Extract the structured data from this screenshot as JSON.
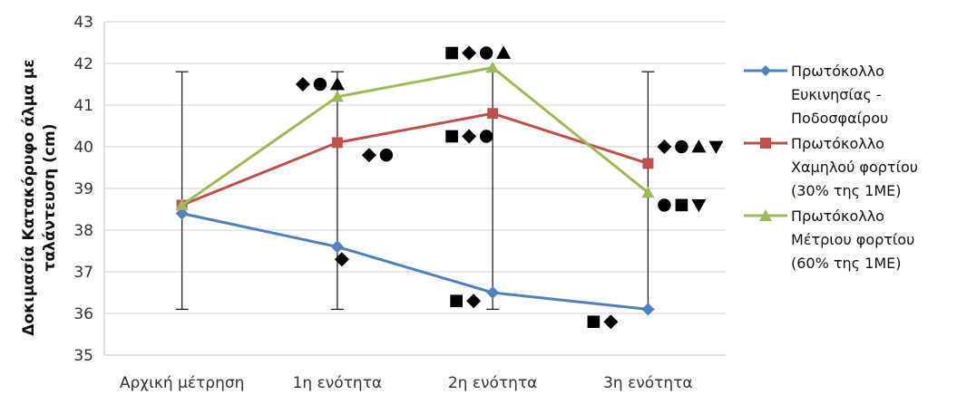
{
  "chart_data": {
    "type": "line",
    "title": "",
    "xlabel": "",
    "ylabel_lines": [
      "Δοκιμασία Κατακόρυφο άλμα με",
      "ταλάντευση (cm)"
    ],
    "categories": [
      "Αρχική μέτρηση",
      "1η ενότητα",
      "2η ενότητα",
      "3η ενότητα"
    ],
    "ylim": [
      35,
      43
    ],
    "yticks": [
      35,
      36,
      37,
      38,
      39,
      40,
      41,
      42,
      43
    ],
    "grid": true,
    "legend_position": "right",
    "error_bar_range": [
      36.1,
      41.8
    ],
    "series": [
      {
        "name": "Πρωτόκολλο\nΕυκινησίας -\nΠοδοσφαίρου",
        "marker": "diamond",
        "color": "#4F81BD",
        "values": [
          38.4,
          37.6,
          36.5,
          36.1
        ]
      },
      {
        "name": "Πρωτόκολλο\nΧαμηλού φορτίου\n(30% της 1ΜΕ)",
        "marker": "square",
        "color": "#C0504D",
        "values": [
          38.6,
          40.1,
          40.8,
          39.6
        ]
      },
      {
        "name": "Πρωτόκολλο\nΜέτριου φορτίου\n(60% της 1ΜΕ)",
        "marker": "triangle",
        "color": "#9BBB59",
        "values": [
          38.6,
          41.2,
          41.9,
          38.9
        ]
      }
    ],
    "annotations": [
      {
        "category": 1,
        "y": 41.5,
        "symbols": [
          "diamond",
          "circle",
          "triangle"
        ]
      },
      {
        "category": 1,
        "y": 39.8,
        "symbols": [
          "diamond",
          "circle"
        ]
      },
      {
        "category": 1,
        "y": 37.3,
        "symbols": [
          "diamond"
        ]
      },
      {
        "category": 2,
        "y": 42.25,
        "symbols": [
          "square",
          "diamond",
          "circle",
          "triangle"
        ]
      },
      {
        "category": 2,
        "y": 40.25,
        "symbols": [
          "square",
          "diamond",
          "circle"
        ]
      },
      {
        "category": 2,
        "y": 36.3,
        "symbols": [
          "square",
          "diamond"
        ]
      },
      {
        "category": 3,
        "y": 40.0,
        "symbols": [
          "diamond",
          "circle",
          "triangle",
          "triangle-down"
        ]
      },
      {
        "category": 3,
        "y": 38.6,
        "symbols": [
          "circle",
          "square",
          "triangle-down"
        ]
      },
      {
        "category": 3,
        "y": 35.8,
        "symbols": [
          "square",
          "diamond"
        ]
      }
    ]
  }
}
